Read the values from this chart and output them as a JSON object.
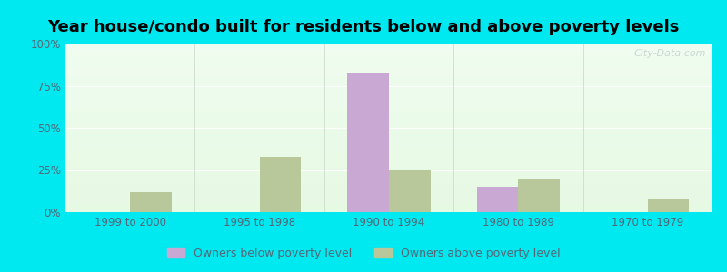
{
  "title": "Year house/condo built for residents below and above poverty levels",
  "categories": [
    "1999 to 2000",
    "1995 to 1998",
    "1990 to 1994",
    "1980 to 1989",
    "1970 to 1979"
  ],
  "below_poverty": [
    0,
    0,
    82,
    15,
    0
  ],
  "above_poverty": [
    12,
    33,
    25,
    20,
    8
  ],
  "below_color": "#c9a8d4",
  "above_color": "#b8c89a",
  "ylim": [
    0,
    100
  ],
  "yticks": [
    0,
    25,
    50,
    75,
    100
  ],
  "ytick_labels": [
    "0%",
    "25%",
    "50%",
    "75%",
    "100%"
  ],
  "bar_width": 0.32,
  "outer_background": "#00e8f0",
  "legend_below_label": "Owners below poverty level",
  "legend_above_label": "Owners above poverty level",
  "title_fontsize": 13,
  "tick_fontsize": 8.5,
  "legend_fontsize": 9,
  "watermark": "City-Data.com",
  "grid_color": "#e0e8e0",
  "tick_color": "#556677"
}
